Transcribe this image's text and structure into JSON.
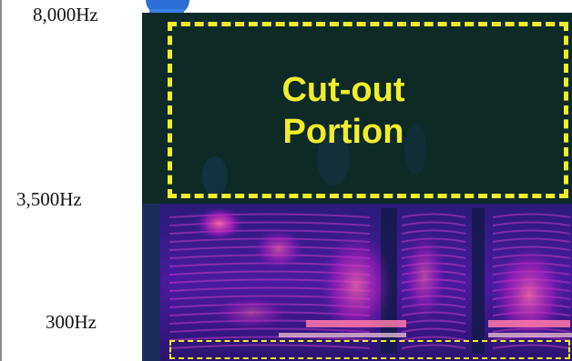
{
  "axis": {
    "top_label": "8,000Hz",
    "mid_label": "3,500Hz",
    "bottom_label": "300Hz"
  },
  "annotation": {
    "line1": "Cut-out",
    "line2": "Portion"
  },
  "colors": {
    "highlight": "#f2ee2a",
    "background_band": "#0e2a26",
    "energy_low": "#3a1a8a",
    "energy_mid": "#b020c0",
    "energy_high": "#ff5a9a"
  }
}
